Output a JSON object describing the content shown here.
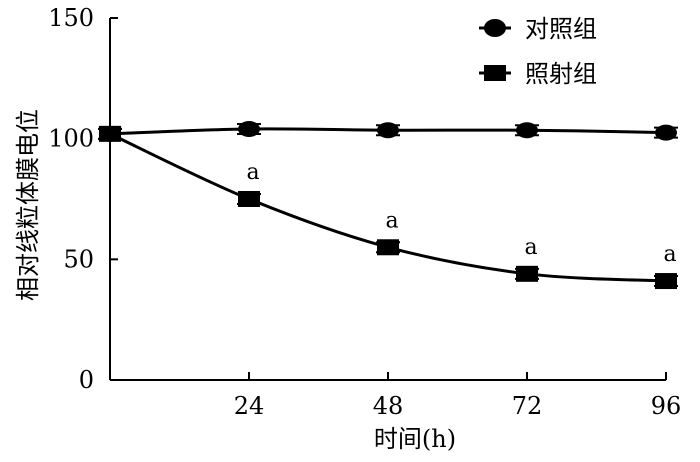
{
  "chart_data": {
    "type": "line",
    "title": "",
    "xlabel": "时间(h)",
    "ylabel": "相对线粒体膜电位",
    "x": [
      0,
      24,
      48,
      72,
      96
    ],
    "xticks": [
      "24",
      "48",
      "72",
      "96"
    ],
    "yticks": [
      "0",
      "50",
      "100",
      "150"
    ],
    "xlim": [
      0,
      96
    ],
    "ylim": [
      0,
      150
    ],
    "grid": false,
    "legend_position": "top-right",
    "series": [
      {
        "name": "对照组",
        "marker": "circle",
        "values": [
          102,
          104,
          103.5,
          103.5,
          102.5
        ]
      },
      {
        "name": "照射组",
        "marker": "square",
        "values": [
          102,
          75,
          55,
          44,
          41
        ]
      }
    ],
    "annotations": [
      {
        "x": 24,
        "text": "a"
      },
      {
        "x": 48,
        "text": "a"
      },
      {
        "x": 72,
        "text": "a"
      },
      {
        "x": 96,
        "text": "a"
      }
    ]
  }
}
